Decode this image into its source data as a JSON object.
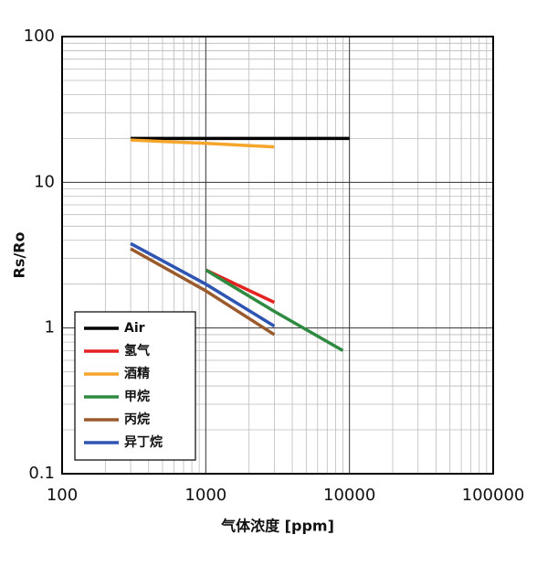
{
  "chart_data": {
    "type": "line",
    "xlabel": "气体浓度 [ppm]",
    "ylabel": "Rs/Ro",
    "xscale": "log",
    "yscale": "log",
    "xlim": [
      100,
      100000
    ],
    "ylim": [
      0.1,
      100
    ],
    "xticks": [
      100,
      1000,
      10000,
      100000
    ],
    "yticks": [
      0.1,
      1,
      10,
      100
    ],
    "grid": true,
    "legend": "lower left",
    "series": [
      {
        "name": "Air",
        "color": "#000000",
        "x": [
          300,
          10000
        ],
        "values": [
          20,
          20
        ]
      },
      {
        "name": "氢气",
        "color": "#e42222",
        "x": [
          1000,
          3000
        ],
        "values": [
          2.5,
          1.5
        ]
      },
      {
        "name": "酒精",
        "color": "#f5a52a",
        "x": [
          300,
          1000,
          3000
        ],
        "values": [
          19.5,
          18.5,
          17.5
        ]
      },
      {
        "name": "甲烷",
        "color": "#2e8a40",
        "x": [
          1000,
          3000,
          9000
        ],
        "values": [
          2.5,
          1.3,
          0.7
        ]
      },
      {
        "name": "丙烷",
        "color": "#9a5a2c",
        "x": [
          300,
          1000,
          3000
        ],
        "values": [
          3.5,
          1.8,
          0.9
        ]
      },
      {
        "name": "异丁烷",
        "color": "#2f55b2",
        "x": [
          300,
          1000,
          3000
        ],
        "values": [
          3.8,
          2.0,
          1.03
        ]
      }
    ]
  }
}
